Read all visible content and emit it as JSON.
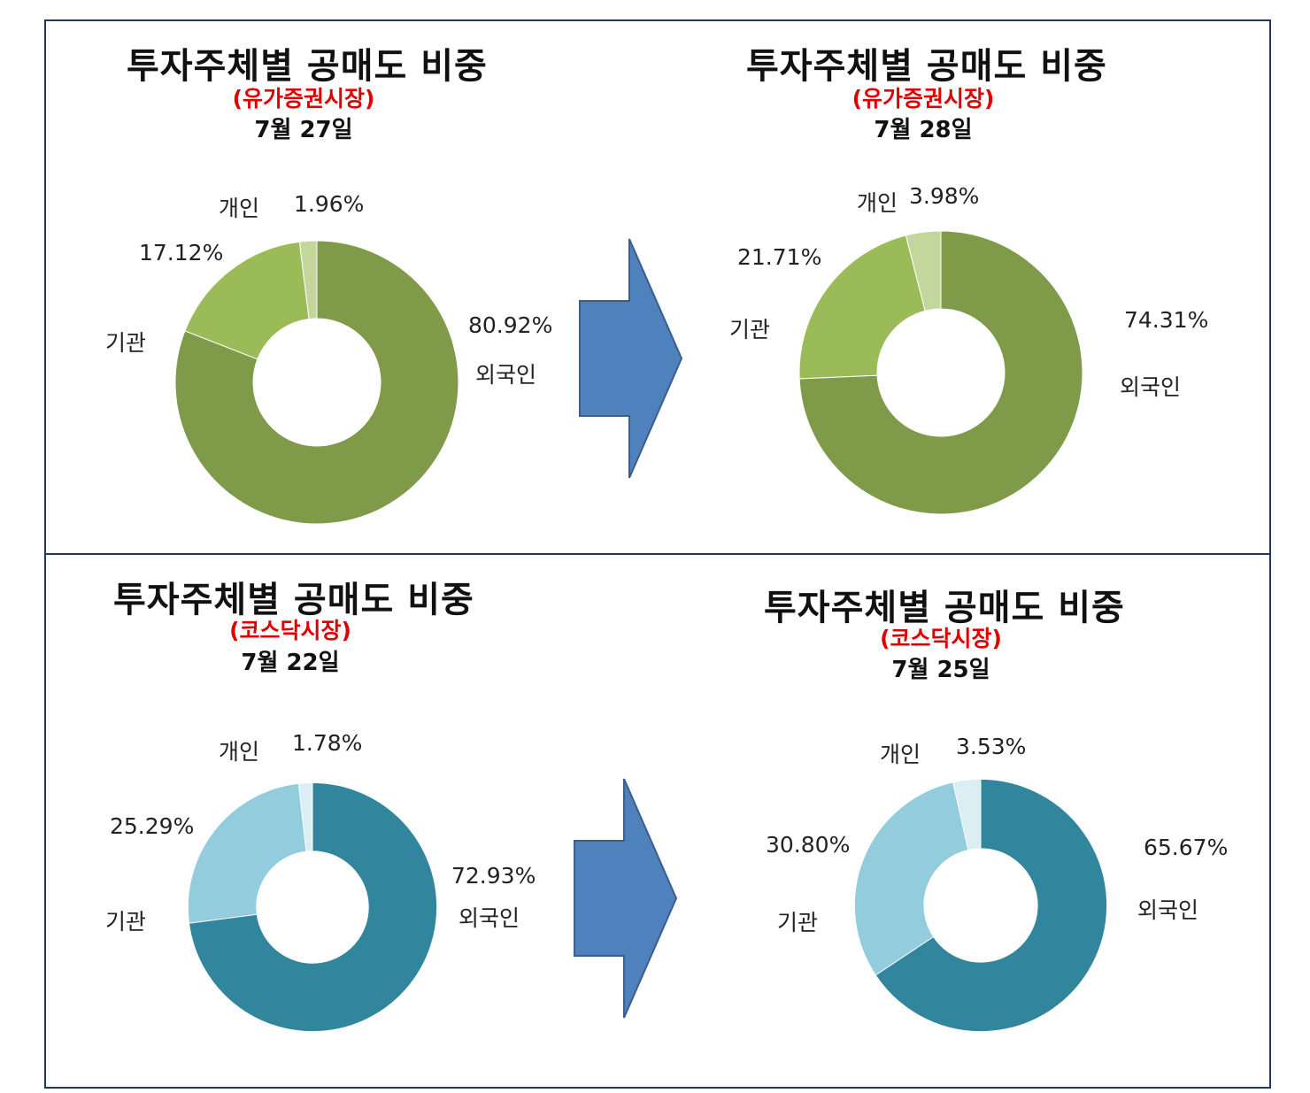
{
  "charts": [
    {
      "title": "투자주체별 공매도 비중",
      "subtitle": "(유가증권시장)",
      "date": "7월 27일",
      "foreign_label": "외국인",
      "foreign_value": "80.92%",
      "inst_label": "기관",
      "inst_value": "17.12%",
      "indiv_label": "개인",
      "indiv_value": "1.96%"
    },
    {
      "title": "투자주체별 공매도 비중",
      "subtitle": "(유가증권시장)",
      "date": "7월 28일",
      "foreign_label": "외국인",
      "foreign_value": "74.31%",
      "inst_label": "기관",
      "inst_value": "21.71%",
      "indiv_label": "개인",
      "indiv_value": "3.98%"
    },
    {
      "title": "투자주체별 공매도 비중",
      "subtitle": "(코스닥시장)",
      "date": "7월 22일",
      "foreign_label": "외국인",
      "foreign_value": "72.93%",
      "inst_label": "기관",
      "inst_value": "25.29%",
      "indiv_label": "개인",
      "indiv_value": "1.78%"
    },
    {
      "title": "투자주체별 공매도 비중",
      "subtitle": "(코스닥시장)",
      "date": "7월 25일",
      "foreign_label": "외국인",
      "foreign_value": "65.67%",
      "inst_label": "기관",
      "inst_value": "30.80%",
      "indiv_label": "개인",
      "indiv_value": "3.53%"
    }
  ],
  "chart_data": [
    {
      "type": "pie",
      "categories": [
        "외국인",
        "기관",
        "개인"
      ],
      "values": [
        80.92,
        17.12,
        1.96
      ],
      "colors": [
        "#7f9a48",
        "#9bbb59",
        "#c3d69b"
      ]
    },
    {
      "type": "pie",
      "categories": [
        "외국인",
        "기관",
        "개인"
      ],
      "values": [
        74.31,
        21.71,
        3.98
      ],
      "colors": [
        "#7f9a48",
        "#9bbb59",
        "#c3d69b"
      ]
    },
    {
      "type": "pie",
      "categories": [
        "외국인",
        "기관",
        "개인"
      ],
      "values": [
        72.93,
        25.29,
        1.78
      ],
      "colors": [
        "#31859c",
        "#93cddd",
        "#dbeef4"
      ]
    },
    {
      "type": "pie",
      "categories": [
        "외국인",
        "기관",
        "개인"
      ],
      "values": [
        65.67,
        30.8,
        3.53
      ],
      "colors": [
        "#31859c",
        "#93cddd",
        "#dbeef4"
      ]
    }
  ],
  "arrow_color": "#4f81bd"
}
